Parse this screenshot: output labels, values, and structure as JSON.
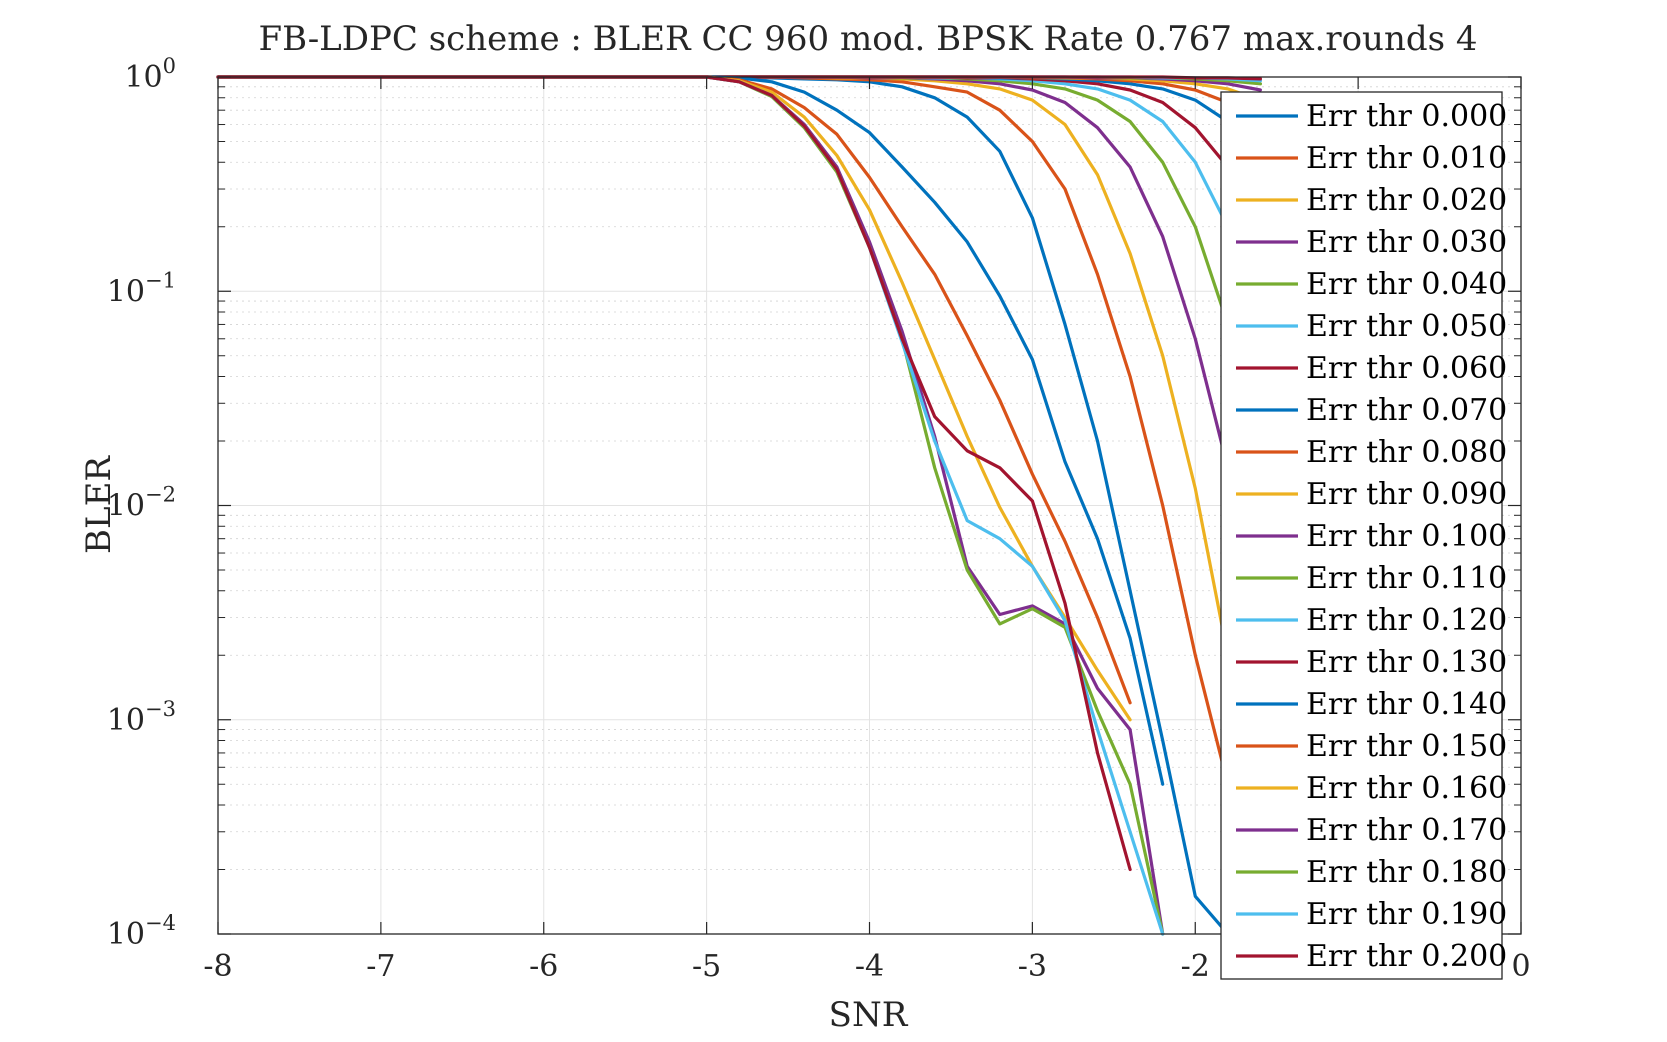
{
  "chart_data": {
    "type": "line",
    "title": "FB-LDPC scheme : BLER CC 960 mod. BPSK Rate 0.767 max.rounds 4",
    "xlabel": "SNR",
    "ylabel": "BLER",
    "xlim": [
      -8,
      0
    ],
    "ylim": [
      0.0001,
      1
    ],
    "yscale": "log",
    "grid": true,
    "minor_grid": true,
    "legend_position": "right",
    "x_ticks": [
      -8,
      -7,
      -6,
      -5,
      -4,
      -3,
      -2,
      -1,
      0
    ],
    "x_tick_labels": [
      "-8",
      "-7",
      "-6",
      "-5",
      "-4",
      "-3",
      "-2",
      "-1",
      "0"
    ],
    "y_ticks": [
      {
        "value": 1,
        "base": "10",
        "exp": "0"
      },
      {
        "value": 0.1,
        "base": "10",
        "exp": "−1"
      },
      {
        "value": 0.01,
        "base": "10",
        "exp": "−2"
      },
      {
        "value": 0.001,
        "base": "10",
        "exp": "−3"
      },
      {
        "value": 0.0001,
        "base": "10",
        "exp": "−4"
      }
    ],
    "series": [
      {
        "name": "Err thr 0.000",
        "color": "#0072BD",
        "x": [
          -8,
          -5,
          -4.6,
          -4.4,
          -4.2,
          -4,
          -3.8,
          -3.6,
          -3.4,
          -3.2,
          -3,
          -2.8,
          -2.6,
          -2.4,
          -2.2,
          -2,
          -1.8,
          -1.6
        ],
        "y": [
          1,
          1,
          0.99,
          0.98,
          0.97,
          0.95,
          0.9,
          0.8,
          0.65,
          0.45,
          0.22,
          0.07,
          0.02,
          0.004,
          0.0008,
          0.00015,
          0.0001,
          0.0001
        ]
      },
      {
        "name": "Err thr 0.010",
        "color": "#D95319",
        "x": [
          -8,
          -5,
          -4.6,
          -4.4,
          -4.2,
          -4,
          -3.8,
          -3.6,
          -3.4,
          -3.2,
          -3,
          -2.8,
          -2.6,
          -2.4,
          -2.2,
          -2,
          -1.8,
          -1.6
        ],
        "y": [
          1,
          1,
          1,
          0.99,
          0.98,
          0.97,
          0.95,
          0.9,
          0.85,
          0.7,
          0.5,
          0.3,
          0.12,
          0.04,
          0.01,
          0.002,
          0.0005,
          0.0001
        ]
      },
      {
        "name": "Err thr 0.020",
        "color": "#EDB120",
        "x": [
          -8,
          -5,
          -4.6,
          -4.4,
          -4.2,
          -4,
          -3.8,
          -3.6,
          -3.4,
          -3.2,
          -3,
          -2.8,
          -2.6,
          -2.4,
          -2.2,
          -2,
          -1.8,
          -1.6
        ],
        "y": [
          1,
          1,
          1,
          1,
          0.99,
          0.99,
          0.98,
          0.96,
          0.93,
          0.88,
          0.78,
          0.6,
          0.35,
          0.15,
          0.05,
          0.012,
          0.002,
          0.0003
        ]
      },
      {
        "name": "Err thr 0.030",
        "color": "#7E2F8E",
        "x": [
          -8,
          -5,
          -4.6,
          -4.4,
          -4.2,
          -4,
          -3.8,
          -3.6,
          -3.4,
          -3.2,
          -3,
          -2.8,
          -2.6,
          -2.4,
          -2.2,
          -2,
          -1.8,
          -1.6
        ],
        "y": [
          1,
          1,
          1,
          1,
          1,
          0.99,
          0.99,
          0.98,
          0.96,
          0.93,
          0.87,
          0.76,
          0.58,
          0.38,
          0.18,
          0.06,
          0.015,
          0.003
        ]
      },
      {
        "name": "Err thr 0.040",
        "color": "#77AC30",
        "x": [
          -8,
          -5,
          -4.6,
          -4.4,
          -4.2,
          -4,
          -3.8,
          -3.6,
          -3.4,
          -3.2,
          -3,
          -2.8,
          -2.6,
          -2.4,
          -2.2,
          -2,
          -1.8,
          -1.6
        ],
        "y": [
          1,
          1,
          1,
          1,
          1,
          1,
          0.99,
          0.99,
          0.98,
          0.96,
          0.93,
          0.88,
          0.78,
          0.62,
          0.4,
          0.2,
          0.07,
          0.02
        ]
      },
      {
        "name": "Err thr 0.050",
        "color": "#4DBEEE",
        "x": [
          -8,
          -5,
          -4.6,
          -4.4,
          -4.2,
          -4,
          -3.8,
          -3.6,
          -3.4,
          -3.2,
          -3,
          -2.8,
          -2.6,
          -2.4,
          -2.2,
          -2,
          -1.8,
          -1.6
        ],
        "y": [
          1,
          1,
          1,
          1,
          1,
          1,
          1,
          0.99,
          0.99,
          0.98,
          0.96,
          0.93,
          0.88,
          0.78,
          0.62,
          0.4,
          0.2,
          0.07
        ]
      },
      {
        "name": "Err thr 0.060",
        "color": "#A2142F",
        "x": [
          -8,
          -5,
          -4.6,
          -4.4,
          -4.2,
          -4,
          -3.8,
          -3.6,
          -3.4,
          -3.2,
          -3,
          -2.8,
          -2.6,
          -2.4,
          -2.2,
          -2,
          -1.8,
          -1.6
        ],
        "y": [
          1,
          1,
          1,
          1,
          1,
          1,
          1,
          1,
          0.99,
          0.99,
          0.98,
          0.96,
          0.93,
          0.87,
          0.76,
          0.58,
          0.38,
          0.18
        ]
      },
      {
        "name": "Err thr 0.070",
        "color": "#0072BD",
        "x": [
          -8,
          -5,
          -4.6,
          -4.4,
          -4.2,
          -4,
          -3.8,
          -3.6,
          -3.4,
          -3.2,
          -3,
          -2.8,
          -2.6,
          -2.4,
          -2.2,
          -2,
          -1.8,
          -1.6
        ],
        "y": [
          1,
          1,
          1,
          1,
          1,
          1,
          1,
          1,
          1,
          0.99,
          0.99,
          0.98,
          0.96,
          0.93,
          0.88,
          0.78,
          0.62,
          0.42
        ]
      },
      {
        "name": "Err thr 0.080",
        "color": "#D95319",
        "x": [
          -8,
          -5,
          -4.6,
          -4.4,
          -4.2,
          -4,
          -3.8,
          -3.6,
          -3.4,
          -3.2,
          -3,
          -2.8,
          -2.6,
          -2.4,
          -2.2,
          -2,
          -1.8,
          -1.6
        ],
        "y": [
          1,
          1,
          1,
          1,
          1,
          1,
          1,
          1,
          1,
          1,
          0.99,
          0.99,
          0.98,
          0.96,
          0.93,
          0.87,
          0.76,
          0.58
        ]
      },
      {
        "name": "Err thr 0.090",
        "color": "#EDB120",
        "x": [
          -8,
          -5,
          -4.6,
          -4.4,
          -4.2,
          -4,
          -3.8,
          -3.6,
          -3.4,
          -3.2,
          -3,
          -2.8,
          -2.6,
          -2.4,
          -2.2,
          -2,
          -1.8,
          -1.6
        ],
        "y": [
          1,
          1,
          1,
          1,
          1,
          1,
          1,
          1,
          1,
          1,
          1,
          0.99,
          0.99,
          0.98,
          0.96,
          0.93,
          0.88,
          0.78
        ]
      },
      {
        "name": "Err thr 0.100",
        "color": "#7E2F8E",
        "x": [
          -8,
          -5,
          -4.6,
          -4.4,
          -4.2,
          -4,
          -3.8,
          -3.6,
          -3.4,
          -3.2,
          -3,
          -2.8,
          -2.6,
          -2.4,
          -2.2,
          -2,
          -1.8,
          -1.6
        ],
        "y": [
          1,
          1,
          1,
          1,
          1,
          1,
          1,
          1,
          1,
          1,
          1,
          1,
          0.99,
          0.99,
          0.98,
          0.96,
          0.93,
          0.87
        ]
      },
      {
        "name": "Err thr 0.110",
        "color": "#77AC30",
        "x": [
          -8,
          -5,
          -4.6,
          -4.4,
          -4.2,
          -4,
          -3.8,
          -3.6,
          -3.4,
          -3.2,
          -3,
          -2.8,
          -2.6,
          -2.4,
          -2.2,
          -2,
          -1.8,
          -1.6
        ],
        "y": [
          1,
          1,
          1,
          1,
          1,
          1,
          1,
          1,
          1,
          1,
          1,
          1,
          1,
          0.99,
          0.99,
          0.98,
          0.96,
          0.93
        ]
      },
      {
        "name": "Err thr 0.120",
        "color": "#4DBEEE",
        "x": [
          -8,
          -5,
          -4.6,
          -4.4,
          -4.2,
          -4,
          -3.8,
          -3.6,
          -3.4,
          -3.2,
          -3,
          -2.8,
          -2.6,
          -2.4,
          -2.2,
          -2,
          -1.8,
          -1.6
        ],
        "y": [
          1,
          1,
          1,
          1,
          1,
          1,
          1,
          1,
          1,
          1,
          1,
          1,
          1,
          1,
          0.99,
          0.99,
          0.98,
          0.96
        ]
      },
      {
        "name": "Err thr 0.130",
        "color": "#A2142F",
        "x": [
          -8,
          -5,
          -4.6,
          -4.4,
          -4.2,
          -4,
          -3.8,
          -3.6,
          -3.4,
          -3.2,
          -3,
          -2.8,
          -2.6,
          -2.4,
          -2.2,
          -2,
          -1.8,
          -1.6
        ],
        "y": [
          1,
          1,
          1,
          1,
          1,
          1,
          1,
          1,
          1,
          1,
          1,
          1,
          1,
          1,
          1,
          0.99,
          0.99,
          0.98
        ]
      },
      {
        "name": "Err thr 0.140",
        "color": "#0072BD",
        "x": [
          -8,
          -5,
          -4.8,
          -4.6,
          -4.4,
          -4.2,
          -4,
          -3.8,
          -3.6,
          -3.4,
          -3.2,
          -3,
          -2.8,
          -2.6,
          -2.4,
          -2.2
        ],
        "y": [
          1,
          1,
          0.99,
          0.95,
          0.85,
          0.7,
          0.55,
          0.38,
          0.26,
          0.17,
          0.095,
          0.048,
          0.016,
          0.007,
          0.0024,
          0.0005
        ]
      },
      {
        "name": "Err thr 0.150",
        "color": "#D95319",
        "x": [
          -8,
          -5,
          -4.8,
          -4.6,
          -4.4,
          -4.2,
          -4,
          -3.8,
          -3.6,
          -3.4,
          -3.2,
          -3,
          -2.8,
          -2.6,
          -2.4
        ],
        "y": [
          1,
          1,
          0.97,
          0.88,
          0.72,
          0.54,
          0.34,
          0.2,
          0.12,
          0.062,
          0.031,
          0.014,
          0.0068,
          0.003,
          0.0012
        ]
      },
      {
        "name": "Err thr 0.160",
        "color": "#EDB120",
        "x": [
          -8,
          -5,
          -4.8,
          -4.6,
          -4.4,
          -4.2,
          -4,
          -3.8,
          -3.6,
          -3.4,
          -3.2,
          -3,
          -2.8,
          -2.6,
          -2.4
        ],
        "y": [
          1,
          1,
          0.96,
          0.85,
          0.65,
          0.43,
          0.24,
          0.11,
          0.048,
          0.021,
          0.0098,
          0.0052,
          0.003,
          0.0017,
          0.001
        ]
      },
      {
        "name": "Err thr 0.170",
        "color": "#7E2F8E",
        "x": [
          -8,
          -5,
          -4.8,
          -4.6,
          -4.4,
          -4.2,
          -4,
          -3.8,
          -3.6,
          -3.4,
          -3.2,
          -3,
          -2.8,
          -2.6,
          -2.4,
          -2.2
        ],
        "y": [
          1,
          1,
          0.95,
          0.82,
          0.6,
          0.38,
          0.17,
          0.065,
          0.021,
          0.0052,
          0.0031,
          0.0034,
          0.0028,
          0.0014,
          0.0009,
          0.0001
        ]
      },
      {
        "name": "Err thr 0.180",
        "color": "#77AC30",
        "x": [
          -8,
          -5,
          -4.8,
          -4.6,
          -4.4,
          -4.2,
          -4,
          -3.8,
          -3.6,
          -3.4,
          -3.2,
          -3,
          -2.8,
          -2.6,
          -2.4,
          -2.2
        ],
        "y": [
          1,
          1,
          0.95,
          0.81,
          0.58,
          0.36,
          0.16,
          0.06,
          0.015,
          0.005,
          0.0028,
          0.0033,
          0.0027,
          0.0011,
          0.0005,
          0.0001
        ]
      },
      {
        "name": "Err thr 0.190",
        "color": "#4DBEEE",
        "x": [
          -8,
          -5,
          -4.8,
          -4.6,
          -4.4,
          -4.2,
          -4,
          -3.8,
          -3.6,
          -3.4,
          -3.2,
          -3,
          -2.8,
          -2.6,
          -2.4,
          -2.2
        ],
        "y": [
          1,
          1,
          0.95,
          0.82,
          0.59,
          0.37,
          0.16,
          0.058,
          0.02,
          0.0085,
          0.007,
          0.0052,
          0.0029,
          0.0009,
          0.0003,
          0.0001
        ]
      },
      {
        "name": "Err thr 0.200",
        "color": "#A2142F",
        "x": [
          -8,
          -5,
          -4.8,
          -4.6,
          -4.4,
          -4.2,
          -4,
          -3.8,
          -3.6,
          -3.4,
          -3.2,
          -3,
          -2.8,
          -2.6,
          -2.4
        ],
        "y": [
          1,
          1,
          0.95,
          0.82,
          0.59,
          0.37,
          0.16,
          0.06,
          0.026,
          0.018,
          0.015,
          0.0105,
          0.0035,
          0.0007,
          0.0002
        ]
      }
    ]
  }
}
